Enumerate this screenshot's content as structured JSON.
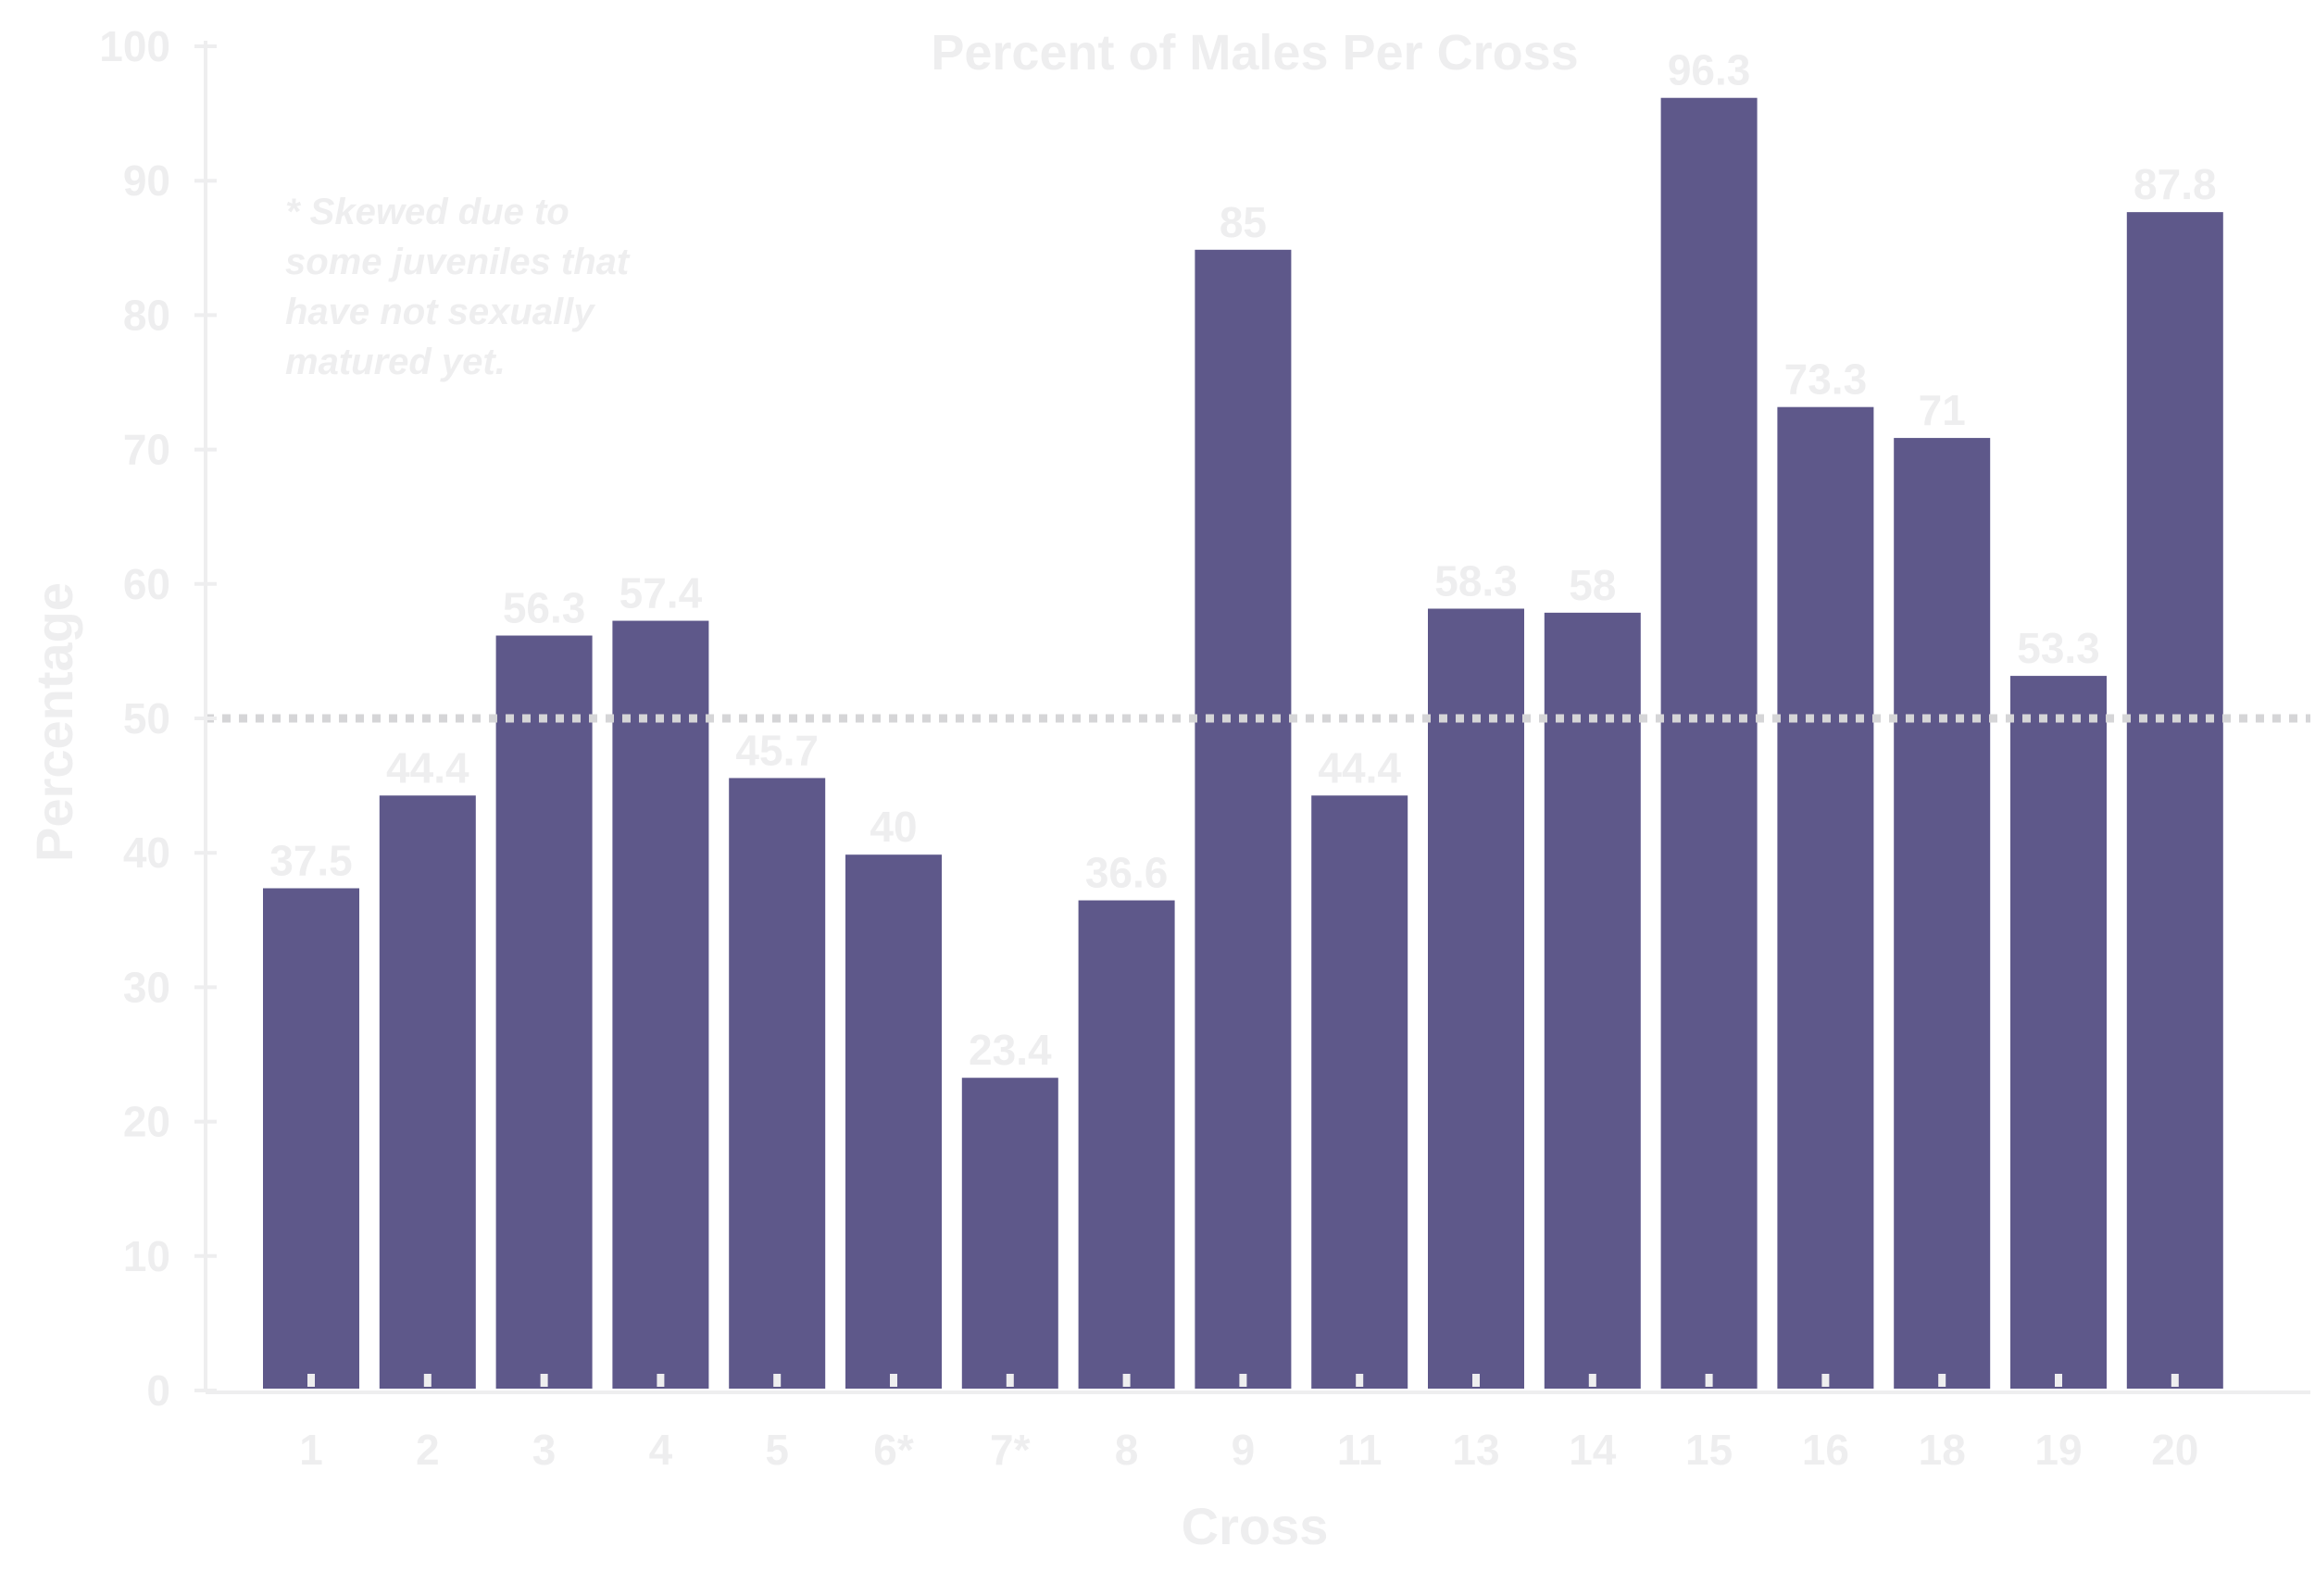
{
  "colors": {
    "bar": "#5e588a",
    "bar_edge": "#ffffff",
    "text": "#eeeeef",
    "axis": "#eeeeef",
    "reference_line": "#d5d5d7",
    "background": "#ffffff"
  },
  "chart_data": {
    "type": "bar",
    "title": "Percent of Males Per Cross",
    "xlabel": "Cross",
    "ylabel": "Percentage",
    "ylim": [
      0,
      100
    ],
    "yticks": [
      0,
      10,
      20,
      30,
      40,
      50,
      60,
      70,
      80,
      90,
      100
    ],
    "categories": [
      "1",
      "2",
      "3",
      "4",
      "5",
      "6*",
      "7*",
      "8",
      "9",
      "11",
      "13",
      "14",
      "15",
      "16",
      "18",
      "19",
      "20"
    ],
    "values": [
      37.5,
      44.4,
      56.3,
      57.4,
      45.7,
      40,
      23.4,
      36.6,
      85,
      44.4,
      58.3,
      58,
      96.3,
      73.3,
      71,
      53.3,
      87.8
    ],
    "value_labels": [
      "37.5",
      "44.4",
      "56.3",
      "57.4",
      "45.7",
      "40",
      "23.4",
      "36.6",
      "85",
      "44.4",
      "58.3",
      "58",
      "96.3",
      "73.3",
      "71",
      "53.3",
      "87.8"
    ],
    "reference_line": {
      "value": 50,
      "style": "dotted"
    },
    "annotation": [
      "* Skewed due to",
      "some juveniles that",
      "have not sexually",
      "matured yet."
    ],
    "grid": false,
    "legend": "none"
  }
}
